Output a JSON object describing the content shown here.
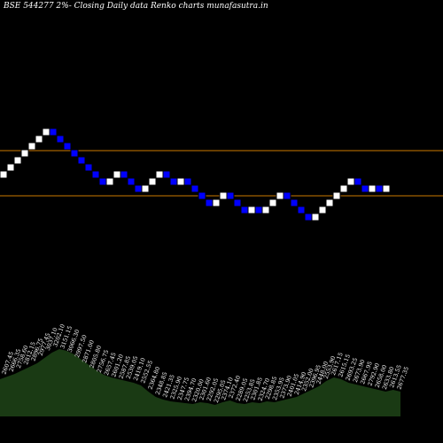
{
  "title": "BSE 544277 2%-  Closing Daily data  Renko  charts munafasutra.in",
  "chart_data": {
    "type": "renko",
    "title": "BSE 544277 2%-  Closing Daily data  Renko  charts munafasutra.in",
    "colors": {
      "background": "#000000",
      "up_brick": "#ffffff",
      "down_brick": "#0000ff",
      "level_line": "#cc7a00",
      "volume_area": "#1a3a14"
    },
    "levels": [
      2806.1,
      2464.15
    ],
    "bricks": [
      "up",
      "up",
      "up",
      "up",
      "up",
      "up",
      "up",
      "down",
      "down",
      "down",
      "down",
      "down",
      "down",
      "down",
      "down",
      "up",
      "up",
      "down",
      "down",
      "down",
      "up",
      "up",
      "up",
      "down",
      "down",
      "up",
      "down",
      "down",
      "down",
      "down",
      "up",
      "up",
      "down",
      "down",
      "down",
      "up",
      "down",
      "up",
      "up",
      "up",
      "down",
      "down",
      "down",
      "down",
      "up",
      "up",
      "up",
      "up",
      "up",
      "up",
      "down",
      "down",
      "up",
      "down",
      "up"
    ],
    "price_labels": [
      "2607.45",
      "2666.35",
      "2758.60",
      "2812.15",
      "2896.75",
      "2977.45",
      "3037.10",
      "3202.10",
      "3151.15",
      "3066.30",
      "2997.50",
      "2871.00",
      "2805.80",
      "2756.75",
      "2657.45",
      "2601.20",
      "2587.85",
      "2539.05",
      "2419.10",
      "2552.55",
      "2364.80",
      "2348.85",
      "2421.35",
      "2325.90",
      "2347.75",
      "2394.70",
      "2320.00",
      "2301.60",
      "2292.05",
      "2295.05",
      "2374.10",
      "2372.40",
      "2289.05",
      "2253.85",
      "2301.85",
      "2324.70",
      "2298.85",
      "2353.95",
      "2373.90",
      "2401.05",
      "2414.90",
      "2352.00",
      "2396.95",
      "2448.00",
      "2553.90",
      "2617.15",
      "2615.15",
      "2693.25",
      "2673.90",
      "2667.95",
      "2792.90",
      "2658.00",
      "2633.80",
      "2613.55",
      "2677.35"
    ],
    "volume": [
      42,
      45,
      48,
      52,
      56,
      60,
      66,
      72,
      76,
      74,
      70,
      64,
      58,
      52,
      47,
      44,
      42,
      40,
      38,
      35,
      28,
      22,
      19,
      17,
      16,
      15,
      14,
      16,
      15,
      13,
      16,
      18,
      15,
      14,
      16,
      15,
      17,
      16,
      18,
      20,
      22,
      26,
      30,
      34,
      40,
      44,
      42,
      38,
      36,
      34,
      32,
      30,
      28,
      30,
      28
    ]
  }
}
